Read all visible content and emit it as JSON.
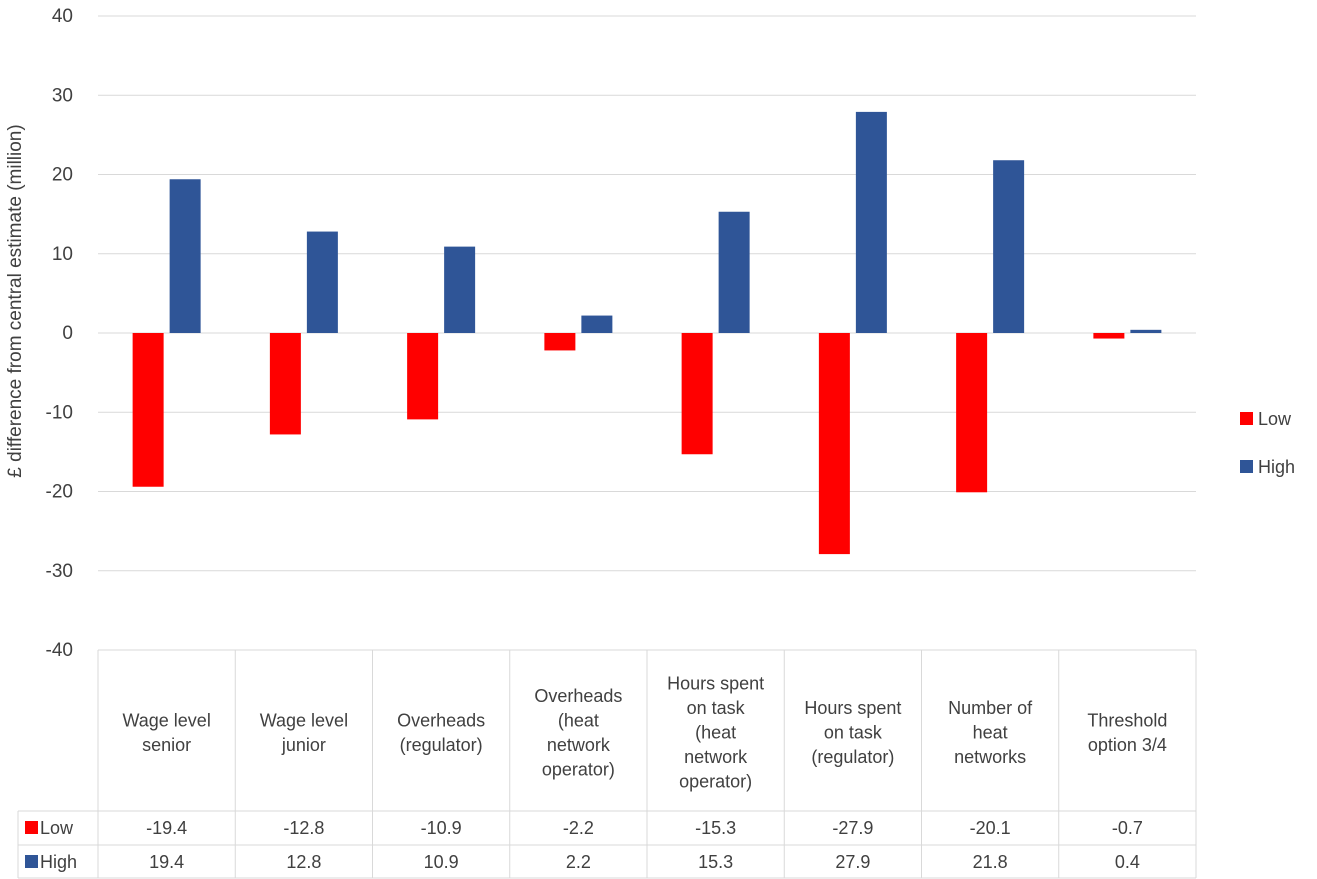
{
  "chart_data": {
    "type": "bar",
    "title": "",
    "xlabel": "",
    "ylabel": "£ difference from central estimate (million)",
    "ylim": [
      -40,
      40
    ],
    "yticks": [
      40,
      30,
      20,
      10,
      0,
      -10,
      -20,
      -30,
      -40
    ],
    "grid": true,
    "legend_position": "right",
    "data_table": true,
    "categories": [
      "Wage level senior",
      "Wage level junior",
      "Overheads (regulator)",
      "Overheads (heat network operator)",
      "Hours spent on task (heat network operator)",
      "Hours spent on task (regulator)",
      "Number of heat networks",
      "Threshold option 3/4"
    ],
    "category_lines": [
      [
        "Wage level",
        "senior"
      ],
      [
        "Wage level",
        "junior"
      ],
      [
        "Overheads",
        "(regulator)"
      ],
      [
        "Overheads",
        "(heat",
        "network",
        "operator)"
      ],
      [
        "Hours spent",
        "on task",
        "(heat",
        "network",
        "operator)"
      ],
      [
        "Hours spent",
        "on task",
        "(regulator)"
      ],
      [
        "Number of",
        "heat",
        "networks"
      ],
      [
        "Threshold",
        "option 3/4"
      ]
    ],
    "series": [
      {
        "name": "Low",
        "color": "#ff0000",
        "values": [
          -19.4,
          -12.8,
          -10.9,
          -2.2,
          -15.3,
          -27.9,
          -20.1,
          -0.7
        ],
        "labels": [
          "-19.4",
          "-12.8",
          "-10.9",
          "-2.2",
          "-15.3",
          "-27.9",
          "-20.1",
          "-0.7"
        ]
      },
      {
        "name": "High",
        "color": "#2f5597",
        "values": [
          19.4,
          12.8,
          10.9,
          2.2,
          15.3,
          27.9,
          21.8,
          0.4
        ],
        "labels": [
          "19.4",
          "12.8",
          "10.9",
          "2.2",
          "15.3",
          "27.9",
          "21.8",
          "0.4"
        ]
      }
    ]
  }
}
